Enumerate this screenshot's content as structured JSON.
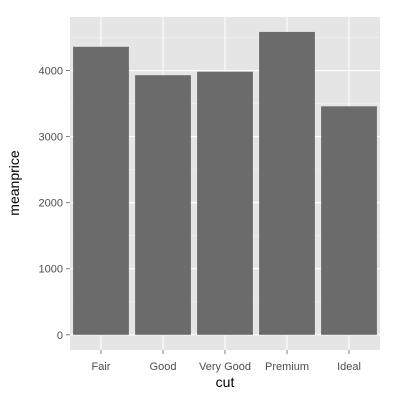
{
  "chart_data": {
    "type": "bar",
    "categories": [
      "Fair",
      "Good",
      "Very Good",
      "Premium",
      "Ideal"
    ],
    "values": [
      4359,
      3929,
      3982,
      4584,
      3458
    ],
    "xlabel": "cut",
    "ylabel": "meanprice",
    "ylim": [
      -230,
      4810
    ],
    "yticks": [
      0,
      1000,
      2000,
      3000,
      4000
    ],
    "ytick_labels": [
      "0",
      "1000",
      "2000",
      "3000",
      "4000"
    ],
    "grid": true,
    "colors": {
      "panel": "#e5e5e5",
      "bar": "#6b6b6b",
      "grid_major": "#ffffff",
      "grid_minor": "#f2f2f2"
    }
  }
}
